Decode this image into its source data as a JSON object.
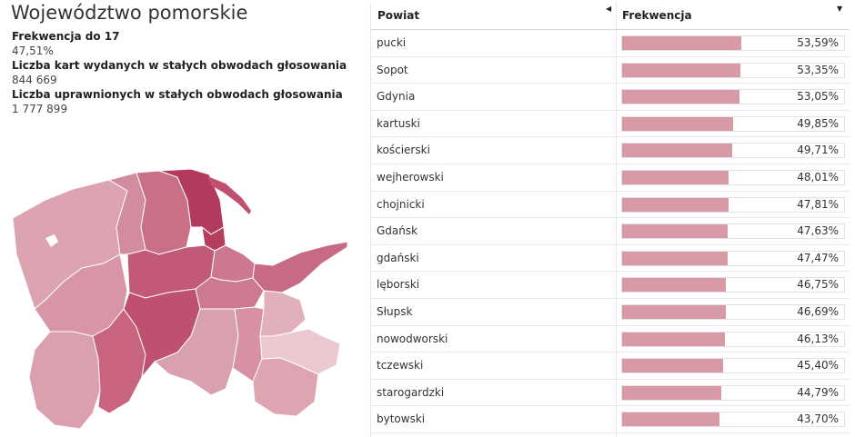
{
  "region": {
    "title": "Województwo pomorskie",
    "stats": [
      {
        "label": "Frekwencja do 17",
        "value": "47,51%"
      },
      {
        "label": "Liczba kart wydanych w stałych obwodach głosowania",
        "value": "844 669"
      },
      {
        "label": "Liczba uprawnionych w stałych obwodach głosowania",
        "value": "1 777 899"
      }
    ]
  },
  "colors": {
    "bar": "#d99aa8",
    "map_low": "#e5b5bf",
    "map_high": "#b5385a",
    "sea": "#c7677f"
  },
  "table": {
    "col_powiat": "Powiat",
    "col_frekwencja": "Frekwencja",
    "sort_left_icon": "caret-left-icon",
    "sort_right_icon": "caret-down-icon"
  },
  "chart_data": {
    "type": "bar",
    "x_max_percent": 100,
    "categories": [
      "pucki",
      "Sopot",
      "Gdynia",
      "kartuski",
      "kościerski",
      "wejherowski",
      "chojnicki",
      "Gdańsk",
      "gdański",
      "lęborski",
      "Słupsk",
      "nowodworski",
      "tczewski",
      "starogardzki",
      "bytowski"
    ],
    "values": [
      53.59,
      53.35,
      53.05,
      49.85,
      49.71,
      48.01,
      47.81,
      47.63,
      47.47,
      46.75,
      46.69,
      46.13,
      45.4,
      44.79,
      43.7
    ],
    "labels": [
      "53,59%",
      "53,35%",
      "53,05%",
      "49,85%",
      "49,71%",
      "48,01%",
      "47,81%",
      "47,63%",
      "47,47%",
      "46,75%",
      "46,69%",
      "46,13%",
      "45,40%",
      "44,79%",
      "43,70%"
    ]
  }
}
